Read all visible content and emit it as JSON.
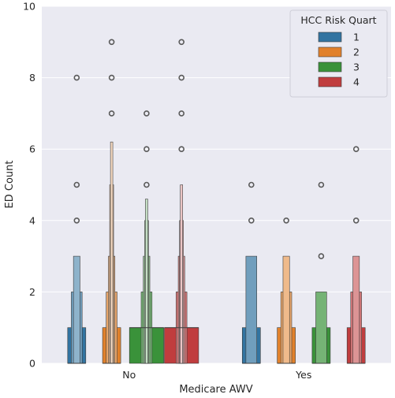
{
  "chart_data": {
    "type": "boxen",
    "xlabel": "Medicare AWV",
    "ylabel": "ED Count",
    "categories": [
      "No",
      "Yes"
    ],
    "ylim": [
      0,
      10
    ],
    "yticks": [
      0,
      2,
      4,
      6,
      8,
      10
    ],
    "grid": true,
    "legend": {
      "title": "HCC Risk Quart",
      "placement": "top-right",
      "entries": [
        "1",
        "2",
        "3",
        "4"
      ]
    },
    "colors": {
      "1": "#3274a1",
      "2": "#e1812c",
      "3": "#3a923a",
      "4": "#c03d3e",
      "background": "#eaeaf2",
      "grid": "#ffffff"
    },
    "series": [
      {
        "name": "1",
        "groups": [
          {
            "category": "No",
            "median": 0,
            "boxes": [
              [
                0,
                1
              ],
              [
                0,
                2
              ],
              [
                0,
                3
              ]
            ],
            "outliers": [
              4,
              5,
              8
            ]
          },
          {
            "category": "Yes",
            "median": 0,
            "boxes": [
              [
                0,
                1
              ],
              [
                0,
                3
              ]
            ],
            "outliers": [
              4,
              5
            ]
          }
        ]
      },
      {
        "name": "2",
        "groups": [
          {
            "category": "No",
            "median": 0,
            "boxes": [
              [
                0,
                1
              ],
              [
                0,
                2
              ],
              [
                0,
                3
              ],
              [
                0,
                5
              ],
              [
                0,
                6.2
              ]
            ],
            "outliers": [
              7,
              8,
              9
            ]
          },
          {
            "category": "Yes",
            "median": 0,
            "boxes": [
              [
                0,
                1
              ],
              [
                0,
                2
              ],
              [
                0,
                3
              ]
            ],
            "outliers": [
              4
            ]
          }
        ]
      },
      {
        "name": "3",
        "groups": [
          {
            "category": "No",
            "median": 1,
            "boxes": [
              [
                0,
                1
              ],
              [
                0,
                2
              ],
              [
                0,
                3
              ],
              [
                0,
                4
              ],
              [
                0,
                4.6
              ]
            ],
            "outliers": [
              5,
              6,
              7
            ]
          },
          {
            "category": "Yes",
            "median": 0,
            "boxes": [
              [
                0,
                1
              ],
              [
                0,
                2
              ]
            ],
            "outliers": [
              3,
              5
            ]
          }
        ]
      },
      {
        "name": "4",
        "groups": [
          {
            "category": "No",
            "median": 1,
            "boxes": [
              [
                0,
                1
              ],
              [
                0,
                2
              ],
              [
                0,
                3
              ],
              [
                0,
                4
              ],
              [
                0,
                5
              ]
            ],
            "outliers": [
              6,
              7,
              8,
              9
            ]
          },
          {
            "category": "Yes",
            "median": 0,
            "boxes": [
              [
                0,
                1
              ],
              [
                0,
                2
              ],
              [
                0,
                3
              ]
            ],
            "outliers": [
              4,
              6
            ]
          }
        ]
      }
    ]
  }
}
